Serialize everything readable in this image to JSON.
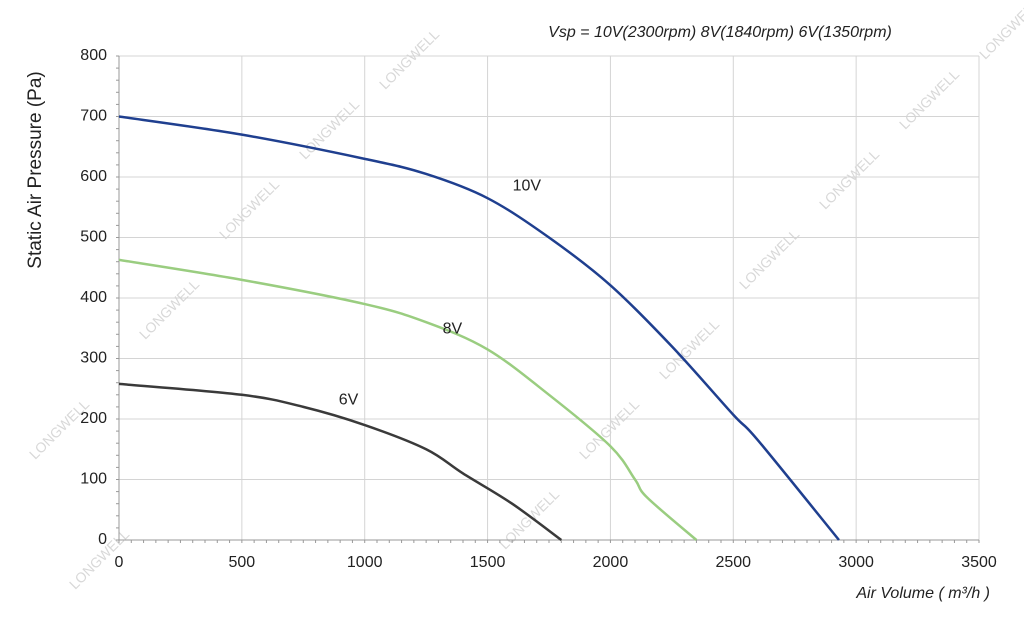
{
  "chart_data": {
    "type": "line",
    "annotation": "Vsp = 10V(2300rpm)  8V(1840rpm)   6V(1350rpm)",
    "y_label": "Static Air Pressure  (Pa)",
    "x_label": "Air Volume ( m³/h )",
    "watermark": "LONGWELL",
    "xlim": [
      0,
      3500
    ],
    "xticks": [
      0,
      500,
      1000,
      1500,
      2000,
      2500,
      3000,
      3500
    ],
    "ylim": [
      0,
      800
    ],
    "yticks": [
      0,
      100,
      200,
      300,
      400,
      500,
      600,
      700,
      800
    ],
    "grid": true,
    "series": [
      {
        "name": "10V",
        "color": "#1f3f8f",
        "x": [
          0,
          500,
          1000,
          1250,
          1500,
          1750,
          2000,
          2250,
          2500,
          2600,
          2930
        ],
        "values": [
          700,
          670,
          630,
          605,
          565,
          500,
          421,
          320,
          207,
          165,
          0
        ]
      },
      {
        "name": "8V",
        "color": "#9acd80",
        "x": [
          0,
          500,
          1000,
          1250,
          1500,
          1750,
          2000,
          2100,
          2150,
          2350
        ],
        "values": [
          463,
          430,
          390,
          360,
          315,
          240,
          155,
          100,
          70,
          0
        ]
      },
      {
        "name": "6V",
        "color": "#3a3a3a",
        "x": [
          0,
          500,
          750,
          1000,
          1250,
          1400,
          1600,
          1800
        ],
        "values": [
          258,
          240,
          220,
          190,
          150,
          110,
          60,
          0
        ]
      }
    ]
  }
}
